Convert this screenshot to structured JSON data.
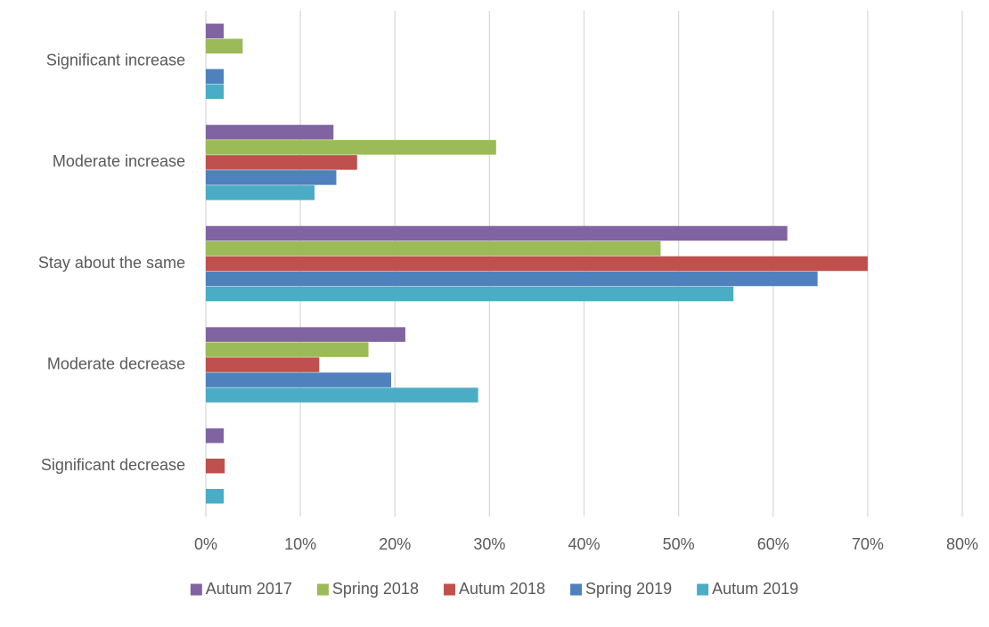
{
  "chart_data": {
    "type": "hbar",
    "categories": [
      "Significant increase",
      "Moderate increase",
      "Stay about the same",
      "Moderate decrease",
      "Significant decrease"
    ],
    "series": [
      {
        "name": "Autum 2017",
        "color": "#8064a2",
        "values": [
          1.9,
          13.5,
          61.5,
          21.1,
          1.9
        ]
      },
      {
        "name": "Spring 2018",
        "color": "#9bbb59",
        "values": [
          3.9,
          30.7,
          48.1,
          17.2,
          0
        ]
      },
      {
        "name": "Autum 2018",
        "color": "#c0504d",
        "values": [
          0,
          16.0,
          70.0,
          12.0,
          2.0
        ]
      },
      {
        "name": "Spring 2019",
        "color": "#4f81bd",
        "values": [
          1.9,
          13.8,
          64.7,
          19.6,
          0
        ]
      },
      {
        "name": "Autum 2019",
        "color": "#4bacc6",
        "values": [
          1.9,
          11.5,
          55.8,
          28.8,
          1.9
        ]
      }
    ],
    "xlim": [
      0,
      80
    ],
    "xticks": [
      {
        "value": 0,
        "label": "0%"
      },
      {
        "value": 10,
        "label": "10%"
      },
      {
        "value": 20,
        "label": "20%"
      },
      {
        "value": 30,
        "label": "30%"
      },
      {
        "value": 40,
        "label": "40%"
      },
      {
        "value": 50,
        "label": "50%"
      },
      {
        "value": 60,
        "label": "60%"
      },
      {
        "value": 70,
        "label": "70%"
      },
      {
        "value": 80,
        "label": "80%"
      }
    ],
    "grid": true,
    "legend": "bottom"
  }
}
